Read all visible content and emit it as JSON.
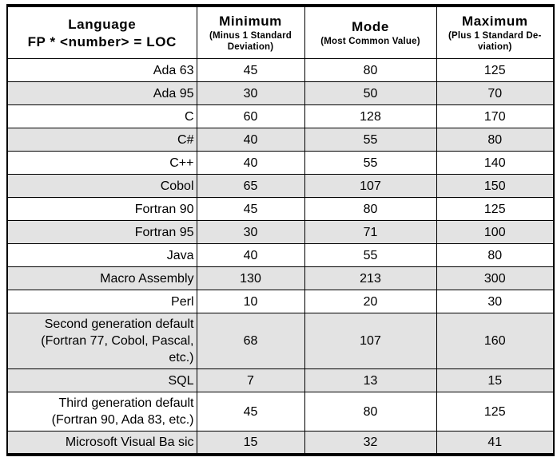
{
  "table": {
    "columns": [
      {
        "title": "Language",
        "subtitle": "FP * <number> = LOC"
      },
      {
        "title": "Minimum",
        "subtitle": "(Minus 1 Standard Deviation)"
      },
      {
        "title": "Mode",
        "subtitle": "(Most Common Value)"
      },
      {
        "title": "Maximum",
        "subtitle": "(Plus 1 Standard De-viation)"
      }
    ],
    "rows": [
      {
        "language": "Ada 63",
        "minimum": "45",
        "mode": "80",
        "maximum": "125",
        "shaded": false
      },
      {
        "language": "Ada 95",
        "minimum": "30",
        "mode": "50",
        "maximum": "70",
        "shaded": true
      },
      {
        "language": "C",
        "minimum": "60",
        "mode": "128",
        "maximum": "170",
        "shaded": false
      },
      {
        "language": "C#",
        "minimum": "40",
        "mode": "55",
        "maximum": "80",
        "shaded": true
      },
      {
        "language": "C++",
        "minimum": "40",
        "mode": "55",
        "maximum": "140",
        "shaded": false
      },
      {
        "language": "Cobol",
        "minimum": "65",
        "mode": "107",
        "maximum": "150",
        "shaded": true
      },
      {
        "language": "Fortran 90",
        "minimum": "45",
        "mode": "80",
        "maximum": "125",
        "shaded": false
      },
      {
        "language": "Fortran 95",
        "minimum": "30",
        "mode": "71",
        "maximum": "100",
        "shaded": true
      },
      {
        "language": "Java",
        "minimum": "40",
        "mode": "55",
        "maximum": "80",
        "shaded": false
      },
      {
        "language": "Macro Assembly",
        "minimum": "130",
        "mode": "213",
        "maximum": "300",
        "shaded": true
      },
      {
        "language": "Perl",
        "minimum": "10",
        "mode": "20",
        "maximum": "30",
        "shaded": false
      },
      {
        "language": "Second generation default (Fortran 77, Cobol, Pascal, etc.)",
        "minimum": "68",
        "mode": "107",
        "maximum": "160",
        "shaded": true
      },
      {
        "language": "SQL",
        "minimum": "7",
        "mode": "13",
        "maximum": "15",
        "shaded": true
      },
      {
        "language": "Third generation default (Fortran 90, Ada 83, etc.)",
        "minimum": "45",
        "mode": "80",
        "maximum": "125",
        "shaded": false
      },
      {
        "language": "Microsoft Visual Ba sic",
        "minimum": "15",
        "mode": "32",
        "maximum": "41",
        "shaded": true
      }
    ]
  },
  "colors": {
    "row_shade": "#e3e3e3",
    "border": "#000000",
    "background": "#ffffff",
    "text": "#000000"
  }
}
